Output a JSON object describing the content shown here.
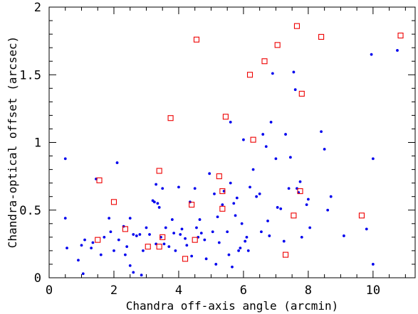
{
  "chart_data": {
    "type": "scatter",
    "title": "",
    "xlabel": "Chandra off-axis angle (arcmin)",
    "ylabel": "Chandra-optical offset (arcsec)",
    "xlim": [
      0,
      11.3
    ],
    "ylim": [
      0,
      2
    ],
    "xticks": [
      0,
      2,
      4,
      6,
      8,
      10
    ],
    "yticks": [
      0,
      0.5,
      1,
      1.5,
      2
    ],
    "ytick_labels": [
      "0",
      "0.5",
      "1",
      "1.5",
      "2"
    ],
    "grid": false,
    "legend": "none",
    "series": [
      {
        "marker": "dot",
        "color": "#0000ee",
        "points": [
          [
            0.5,
            0.88
          ],
          [
            0.5,
            0.44
          ],
          [
            0.55,
            0.22
          ],
          [
            0.9,
            0.13
          ],
          [
            1.0,
            0.24
          ],
          [
            1.05,
            0.03
          ],
          [
            1.1,
            0.28
          ],
          [
            1.3,
            0.22
          ],
          [
            1.35,
            0.26
          ],
          [
            1.45,
            0.73
          ],
          [
            1.6,
            0.17
          ],
          [
            1.7,
            0.3
          ],
          [
            1.85,
            0.44
          ],
          [
            1.9,
            0.34
          ],
          [
            2.0,
            0.2
          ],
          [
            2.1,
            0.85
          ],
          [
            2.15,
            0.28
          ],
          [
            2.3,
            0.38
          ],
          [
            2.35,
            0.17
          ],
          [
            2.4,
            0.23
          ],
          [
            2.5,
            0.44
          ],
          [
            2.5,
            0.09
          ],
          [
            2.6,
            0.32
          ],
          [
            2.6,
            0.04
          ],
          [
            2.7,
            0.31
          ],
          [
            2.8,
            0.32
          ],
          [
            2.85,
            0.02
          ],
          [
            2.9,
            0.2
          ],
          [
            3.0,
            0.37
          ],
          [
            3.1,
            0.32
          ],
          [
            3.2,
            0.57
          ],
          [
            3.25,
            0.56
          ],
          [
            3.3,
            0.25
          ],
          [
            3.3,
            0.69
          ],
          [
            3.35,
            0.55
          ],
          [
            3.4,
            0.52
          ],
          [
            3.45,
            0.3
          ],
          [
            3.5,
            0.66
          ],
          [
            3.55,
            0.25
          ],
          [
            3.6,
            0.37
          ],
          [
            3.7,
            0.23
          ],
          [
            3.8,
            0.43
          ],
          [
            3.85,
            0.33
          ],
          [
            3.9,
            0.2
          ],
          [
            4.0,
            0.67
          ],
          [
            4.05,
            0.32
          ],
          [
            4.1,
            0.36
          ],
          [
            4.2,
            0.29
          ],
          [
            4.25,
            0.24
          ],
          [
            4.35,
            0.56
          ],
          [
            4.4,
            0.16
          ],
          [
            4.5,
            0.66
          ],
          [
            4.55,
            0.37
          ],
          [
            4.6,
            0.3
          ],
          [
            4.65,
            0.43
          ],
          [
            4.7,
            0.33
          ],
          [
            4.8,
            0.28
          ],
          [
            4.85,
            0.14
          ],
          [
            4.95,
            0.77
          ],
          [
            5.05,
            0.34
          ],
          [
            5.1,
            0.62
          ],
          [
            5.15,
            0.1
          ],
          [
            5.2,
            0.45
          ],
          [
            5.25,
            0.26
          ],
          [
            5.35,
            0.54
          ],
          [
            5.4,
            0.64
          ],
          [
            5.5,
            0.34
          ],
          [
            5.55,
            0.17
          ],
          [
            5.6,
            1.15
          ],
          [
            5.6,
            0.7
          ],
          [
            5.65,
            0.08
          ],
          [
            5.7,
            0.55
          ],
          [
            5.75,
            0.46
          ],
          [
            5.8,
            0.59
          ],
          [
            5.85,
            0.2
          ],
          [
            5.9,
            0.22
          ],
          [
            5.95,
            0.4
          ],
          [
            6.0,
            1.02
          ],
          [
            6.05,
            0.27
          ],
          [
            6.1,
            0.3
          ],
          [
            6.15,
            0.2
          ],
          [
            6.2,
            0.67
          ],
          [
            6.3,
            0.8
          ],
          [
            6.4,
            0.6
          ],
          [
            6.5,
            0.62
          ],
          [
            6.55,
            0.34
          ],
          [
            6.6,
            1.06
          ],
          [
            6.7,
            0.97
          ],
          [
            6.75,
            0.42
          ],
          [
            6.8,
            0.31
          ],
          [
            6.85,
            1.15
          ],
          [
            6.9,
            1.51
          ],
          [
            7.0,
            0.88
          ],
          [
            7.05,
            0.52
          ],
          [
            7.15,
            0.51
          ],
          [
            7.25,
            0.27
          ],
          [
            7.3,
            1.06
          ],
          [
            7.4,
            0.66
          ],
          [
            7.45,
            0.89
          ],
          [
            7.55,
            1.52
          ],
          [
            7.6,
            1.39
          ],
          [
            7.65,
            0.66
          ],
          [
            7.7,
            0.63
          ],
          [
            7.75,
            0.71
          ],
          [
            7.8,
            0.3
          ],
          [
            7.95,
            0.54
          ],
          [
            8.0,
            0.58
          ],
          [
            8.05,
            0.37
          ],
          [
            8.4,
            1.08
          ],
          [
            8.5,
            0.95
          ],
          [
            8.6,
            0.5
          ],
          [
            8.7,
            0.6
          ],
          [
            9.1,
            0.31
          ],
          [
            9.8,
            0.36
          ],
          [
            9.95,
            1.65
          ],
          [
            10.0,
            0.88
          ],
          [
            10.0,
            0.1
          ],
          [
            10.75,
            1.68
          ]
        ]
      },
      {
        "marker": "open-square",
        "color": "#ee0000",
        "points": [
          [
            1.55,
            0.72
          ],
          [
            1.5,
            0.28
          ],
          [
            2.0,
            0.56
          ],
          [
            2.35,
            0.36
          ],
          [
            3.05,
            0.23
          ],
          [
            3.4,
            0.79
          ],
          [
            3.4,
            0.23
          ],
          [
            3.5,
            0.3
          ],
          [
            3.75,
            1.18
          ],
          [
            4.2,
            0.14
          ],
          [
            4.4,
            0.54
          ],
          [
            4.5,
            0.28
          ],
          [
            4.55,
            1.76
          ],
          [
            5.25,
            0.75
          ],
          [
            5.35,
            0.64
          ],
          [
            5.35,
            0.51
          ],
          [
            5.45,
            1.19
          ],
          [
            6.2,
            1.5
          ],
          [
            6.3,
            1.02
          ],
          [
            6.65,
            1.6
          ],
          [
            7.05,
            1.72
          ],
          [
            7.3,
            0.17
          ],
          [
            7.55,
            0.46
          ],
          [
            7.65,
            1.86
          ],
          [
            7.75,
            0.64
          ],
          [
            7.8,
            1.36
          ],
          [
            8.4,
            1.78
          ],
          [
            9.65,
            0.46
          ],
          [
            10.85,
            1.79
          ]
        ]
      }
    ]
  }
}
